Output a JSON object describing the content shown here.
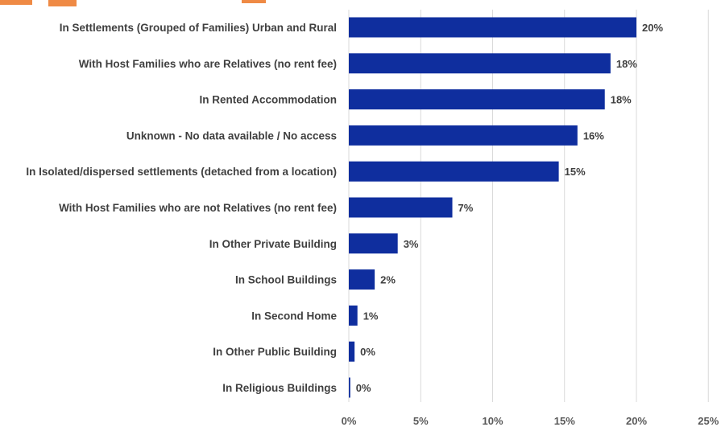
{
  "chart_data": {
    "type": "bar",
    "orientation": "horizontal",
    "categories": [
      "In Settlements (Grouped of Families) Urban and Rural",
      "With Host Families who are Relatives (no rent fee)",
      "In Rented Accommodation",
      "Unknown - No data available / No access",
      "In Isolated/dispersed settlements (detached from a location)",
      "With Host Families who are not Relatives (no rent fee)",
      "In Other Private Building",
      "In School Buildings",
      "In Second Home",
      "In Other Public Building",
      "In Religious Buildings"
    ],
    "values": [
      20,
      18.2,
      17.8,
      15.9,
      14.6,
      7.2,
      3.4,
      1.8,
      0.6,
      0.4,
      0.1
    ],
    "value_labels": [
      "20%",
      "18%",
      "18%",
      "16%",
      "15%",
      "7%",
      "3%",
      "2%",
      "1%",
      "0%",
      "0%"
    ],
    "x_ticks": [
      "0%",
      "5%",
      "10%",
      "15%",
      "20%",
      "25%"
    ],
    "xlim": [
      0,
      25
    ],
    "grid": "vertical",
    "bar_color": "#0f2e9e",
    "accent_color": "#ed7d31"
  }
}
